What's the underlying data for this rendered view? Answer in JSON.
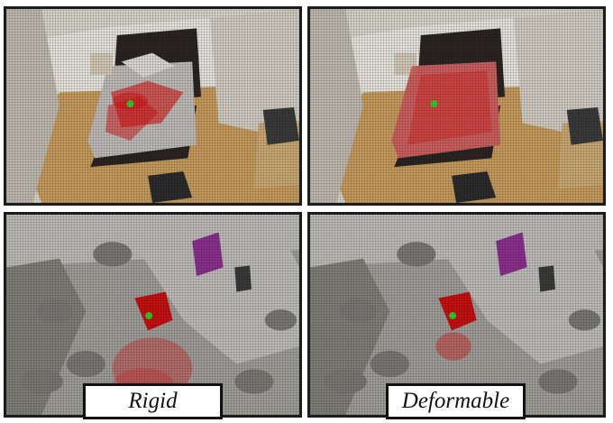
{
  "labels": {
    "left": "Rigid",
    "right": "Deformable"
  },
  "colors": {
    "highlight": "#d41414",
    "query_point": "#26d12c",
    "floor_wood": "#c49a5c",
    "wall": "#d8d4cc",
    "bed_frame": "#2a2522",
    "chair_highlight": "#c41010"
  },
  "panels": [
    {
      "row": "top",
      "scene": "bedroom",
      "method": "rigid"
    },
    {
      "row": "top",
      "scene": "bedroom",
      "method": "deformable"
    },
    {
      "row": "bottom",
      "scene": "office",
      "method": "rigid"
    },
    {
      "row": "bottom",
      "scene": "office",
      "method": "deformable"
    }
  ]
}
